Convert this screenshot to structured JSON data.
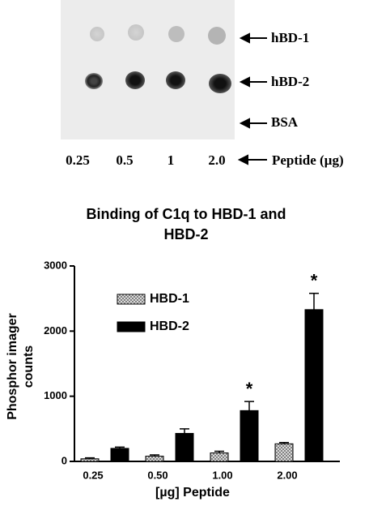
{
  "blot": {
    "row_labels": [
      "hBD-1",
      "hBD-2",
      "BSA"
    ],
    "column_labels": [
      "0.25",
      "0.5",
      "1",
      "2.0"
    ],
    "column_title": "Peptide (µg)"
  },
  "chart_data": {
    "type": "bar",
    "title": "Binding of C1q to HBD-1 and HBD-2",
    "x_label": "[µg] Peptide",
    "y_label": "Phosphor imager counts",
    "categories": [
      "0.25",
      "0.50",
      "1.00",
      "2.00"
    ],
    "series": [
      {
        "name": "HBD-1",
        "color": "#9a9a9a",
        "pattern": "crosshatch",
        "values": [
          40,
          80,
          130,
          270
        ],
        "errors": [
          15,
          20,
          25,
          20
        ]
      },
      {
        "name": "HBD-2",
        "color": "#000000",
        "values": [
          200,
          430,
          780,
          2330
        ],
        "errors": [
          20,
          70,
          140,
          250
        ],
        "annotations": [
          null,
          null,
          "*",
          "*"
        ]
      }
    ],
    "ylim": [
      0,
      3000
    ],
    "yticks": [
      0,
      1000,
      2000,
      3000
    ],
    "legend": "upper left"
  }
}
